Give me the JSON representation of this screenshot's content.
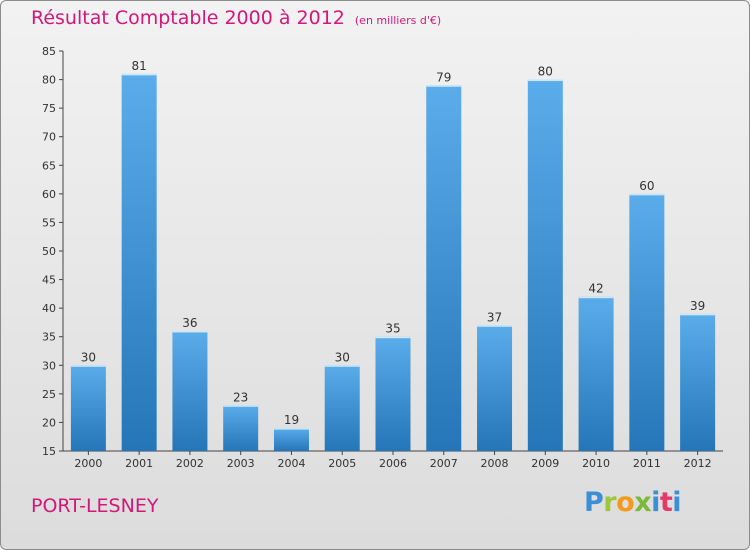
{
  "header": {
    "title": "Résultat Comptable 2000 à 2012",
    "subtitle": "(en milliers d'€)"
  },
  "footer": {
    "commune": "PORT-LESNEY",
    "logo": [
      "P",
      "r",
      "o",
      "x",
      "i",
      "t",
      "i"
    ]
  },
  "colors": {
    "title": "#d2187a",
    "bar_light": "#5aacea",
    "bar_dark": "#2476b8",
    "background": "#e6e6e6"
  },
  "chart_data": {
    "type": "bar",
    "categories": [
      "2000",
      "2001",
      "2002",
      "2003",
      "2004",
      "2005",
      "2006",
      "2007",
      "2008",
      "2009",
      "2010",
      "2011",
      "2012"
    ],
    "values": [
      30,
      81,
      36,
      23,
      19,
      30,
      35,
      79,
      37,
      80,
      42,
      60,
      39
    ],
    "ylim": [
      15,
      85
    ],
    "yticks": [
      15,
      20,
      25,
      30,
      35,
      40,
      45,
      50,
      55,
      60,
      65,
      70,
      75,
      80,
      85
    ],
    "grid": false,
    "data_labels": true
  }
}
